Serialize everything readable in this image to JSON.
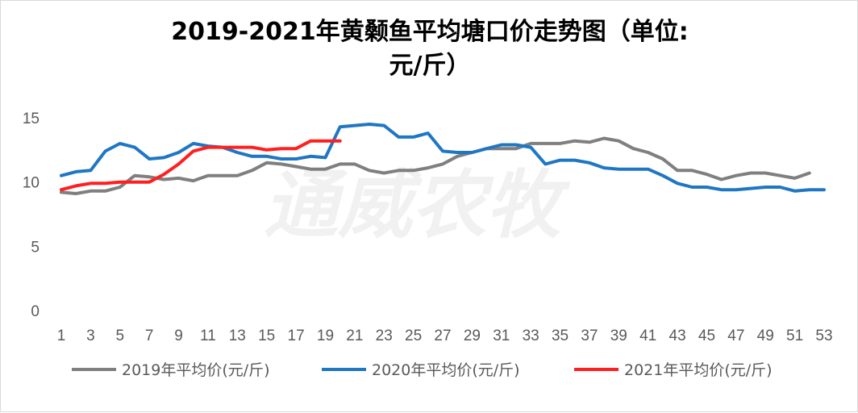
{
  "chart_data": {
    "type": "line",
    "title_line1": "2019-2021年黄颡鱼平均塘口价走势图（单位:",
    "title_line2": "元/斤）",
    "watermark": "通威农牧",
    "ylim": [
      0,
      15
    ],
    "yticks": [
      0,
      5,
      10,
      15
    ],
    "x": [
      1,
      2,
      3,
      4,
      5,
      6,
      7,
      8,
      9,
      10,
      11,
      12,
      13,
      14,
      15,
      16,
      17,
      18,
      19,
      20,
      21,
      22,
      23,
      24,
      25,
      26,
      27,
      28,
      29,
      30,
      31,
      32,
      33,
      34,
      35,
      36,
      37,
      38,
      39,
      40,
      41,
      42,
      43,
      44,
      45,
      46,
      47,
      48,
      49,
      50,
      51,
      52,
      53
    ],
    "xticks": [
      1,
      3,
      5,
      7,
      9,
      11,
      13,
      15,
      17,
      19,
      21,
      23,
      25,
      27,
      29,
      31,
      33,
      35,
      37,
      39,
      41,
      43,
      45,
      47,
      49,
      51,
      53
    ],
    "grid": false,
    "legend": "bottom",
    "series": [
      {
        "name": "2019年平均价(元/斤)",
        "color": "#7f7f7f",
        "values": [
          9.2,
          9.1,
          9.3,
          9.3,
          9.6,
          10.5,
          10.4,
          10.2,
          10.3,
          10.1,
          10.5,
          10.5,
          10.5,
          10.9,
          11.5,
          11.4,
          11.2,
          11.0,
          11.0,
          11.4,
          11.4,
          10.9,
          10.7,
          10.9,
          10.9,
          11.1,
          11.4,
          12.0,
          12.3,
          12.6,
          12.6,
          12.6,
          13.0,
          13.0,
          13.0,
          13.2,
          13.1,
          13.4,
          13.2,
          12.6,
          12.3,
          11.8,
          10.9,
          10.9,
          10.6,
          10.2,
          10.5,
          10.7,
          10.7,
          10.5,
          10.3,
          10.7,
          null
        ]
      },
      {
        "name": "2020年平均价(元/斤)",
        "color": "#1f77c4",
        "values": [
          10.5,
          10.8,
          10.9,
          12.4,
          13.0,
          12.7,
          11.8,
          11.9,
          12.3,
          13.0,
          12.8,
          12.7,
          12.3,
          12.0,
          12.0,
          11.8,
          11.8,
          12.0,
          11.9,
          14.3,
          14.4,
          14.5,
          14.4,
          13.5,
          13.5,
          13.8,
          12.4,
          12.3,
          12.3,
          12.6,
          12.9,
          12.9,
          12.7,
          11.4,
          11.7,
          11.7,
          11.5,
          11.1,
          11.0,
          11.0,
          11.0,
          10.5,
          9.9,
          9.6,
          9.6,
          9.4,
          9.4,
          9.5,
          9.6,
          9.6,
          9.3,
          9.4,
          9.4
        ]
      },
      {
        "name": "2021年平均价(元/斤)",
        "color": "#ff1f1f",
        "values": [
          9.4,
          9.7,
          9.9,
          9.9,
          10.0,
          10.0,
          10.0,
          10.6,
          11.4,
          12.4,
          12.7,
          12.7,
          12.7,
          12.7,
          12.5,
          12.6,
          12.6,
          13.2,
          13.2,
          13.2,
          null,
          null,
          null,
          null,
          null,
          null,
          null,
          null,
          null,
          null,
          null,
          null,
          null,
          null,
          null,
          null,
          null,
          null,
          null,
          null,
          null,
          null,
          null,
          null,
          null,
          null,
          null,
          null,
          null,
          null,
          null,
          null,
          null
        ]
      }
    ]
  }
}
